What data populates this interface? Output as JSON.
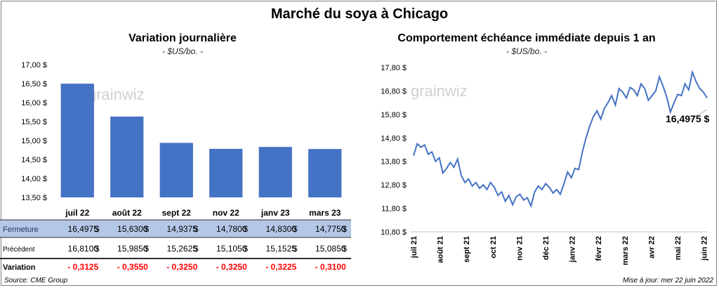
{
  "title": "Marché du soya à Chicago",
  "left_chart": {
    "title": "Variation journalière",
    "subtitle": "- $US/bo. -",
    "watermark": "grainwiz"
  },
  "right_chart": {
    "title": "Comportement échéance immédiate depuis 1 an",
    "subtitle": "- $US/bo. -",
    "watermark": "grainwiz",
    "last_label": "16,4975 $"
  },
  "table": {
    "rows": [
      {
        "label": "Fermeture",
        "values": [
          "16,4975",
          "15,6300",
          "14,9375",
          "14,7800",
          "14,8300",
          "14,7750"
        ],
        "unit": "$"
      },
      {
        "label": "Précédent",
        "values": [
          "16,8100",
          "15,9850",
          "15,2625",
          "15,1050",
          "15,1525",
          "15,0850"
        ],
        "unit": "$"
      },
      {
        "label": "Variation",
        "values": [
          "- 0,3125",
          "- 0,3550",
          "- 0,3250",
          "- 0,3250",
          "- 0,3225",
          "- 0,3100"
        ],
        "unit": ""
      }
    ]
  },
  "footer": {
    "source": "Source: CME Group",
    "updated": "Mise à jour: mer 22 juin 2022"
  },
  "colors": {
    "bar": "#4472c4",
    "line": "#4472c4",
    "header_row": "#b4c7e7",
    "negative": "#ff0000"
  },
  "chart_data": [
    {
      "type": "bar",
      "title": "Variation journalière",
      "subtitle": "- $US/bo. -",
      "categories": [
        "juil 22",
        "août 22",
        "sept 22",
        "nov 22",
        "janv 23",
        "mars 23"
      ],
      "values": [
        16.4975,
        15.63,
        14.9375,
        14.78,
        14.83,
        14.775
      ],
      "ylim": [
        13.5,
        17.0
      ],
      "yticks": [
        13.5,
        14.0,
        14.5,
        15.0,
        15.5,
        16.0,
        16.5,
        17.0
      ],
      "ytick_labels": [
        "13,50 $",
        "14,00 $",
        "14,50 $",
        "15,00 $",
        "15,50 $",
        "16,00 $",
        "16,50 $",
        "17,00 $"
      ],
      "grid": false
    },
    {
      "type": "line",
      "title": "Comportement échéance immédiate depuis 1 an",
      "subtitle": "- $US/bo. -",
      "ylim": [
        10.8,
        17.8
      ],
      "yticks": [
        10.8,
        11.8,
        12.8,
        13.8,
        14.8,
        15.8,
        16.8,
        17.8
      ],
      "ytick_labels": [
        "10,80 $",
        "11,80 $",
        "12,80 $",
        "13,80 $",
        "14,80 $",
        "15,80 $",
        "16,80 $",
        "17,80 $"
      ],
      "xtick_labels": [
        "juil 21",
        "août 21",
        "sept 21",
        "oct 21",
        "nov 21",
        "déc 21",
        "janv 22",
        "févr 22",
        "mars 22",
        "avr 22",
        "mai 22",
        "juin 22"
      ],
      "annotation": "16,4975 $",
      "grid": false,
      "series": [
        {
          "values": [
            14.05,
            14.55,
            14.4,
            14.5,
            14.1,
            14.2,
            13.8,
            13.95,
            13.3,
            13.5,
            13.75,
            13.55,
            13.9,
            13.2,
            12.9,
            13.05,
            12.75,
            12.9,
            12.65,
            12.8,
            12.6,
            12.9,
            12.7,
            12.35,
            12.5,
            12.1,
            12.35,
            11.95,
            12.3,
            12.4,
            12.15,
            12.25,
            11.9,
            12.5,
            12.75,
            12.6,
            12.85,
            12.7,
            12.45,
            12.6,
            12.4,
            12.85,
            13.35,
            13.1,
            13.5,
            13.45,
            14.2,
            14.8,
            15.3,
            15.7,
            15.95,
            15.6,
            16.05,
            16.3,
            16.6,
            16.2,
            16.9,
            16.75,
            16.5,
            16.95,
            16.85,
            16.6,
            17.1,
            16.9,
            16.4,
            16.6,
            16.8,
            17.4,
            17.0,
            16.55,
            15.9,
            16.3,
            16.65,
            16.6,
            17.1,
            16.85,
            17.6,
            17.2,
            16.9,
            16.75,
            16.4975
          ]
        }
      ]
    }
  ]
}
